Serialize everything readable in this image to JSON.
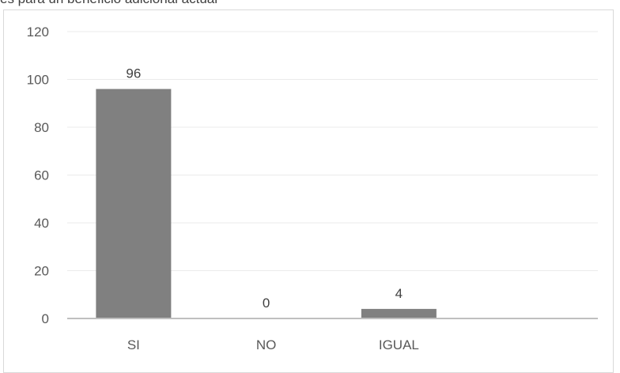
{
  "chart_data": {
    "type": "bar",
    "title": "es para un beneficio adicional actual",
    "categories": [
      "SI",
      "NO",
      "IGUAL",
      ""
    ],
    "values": [
      96,
      0,
      4,
      null
    ],
    "data_labels": [
      "96",
      "0",
      "4",
      ""
    ],
    "ylim": [
      0,
      120
    ],
    "yticks": [
      0,
      20,
      40,
      60,
      80,
      100,
      120
    ],
    "xlabel": "",
    "ylabel": "",
    "grid": true,
    "legend": "none",
    "colors": {
      "bar": "#808080",
      "grid": "#ebebeb",
      "axis": "#bfbfbf",
      "border": "#d9d9d9"
    }
  }
}
